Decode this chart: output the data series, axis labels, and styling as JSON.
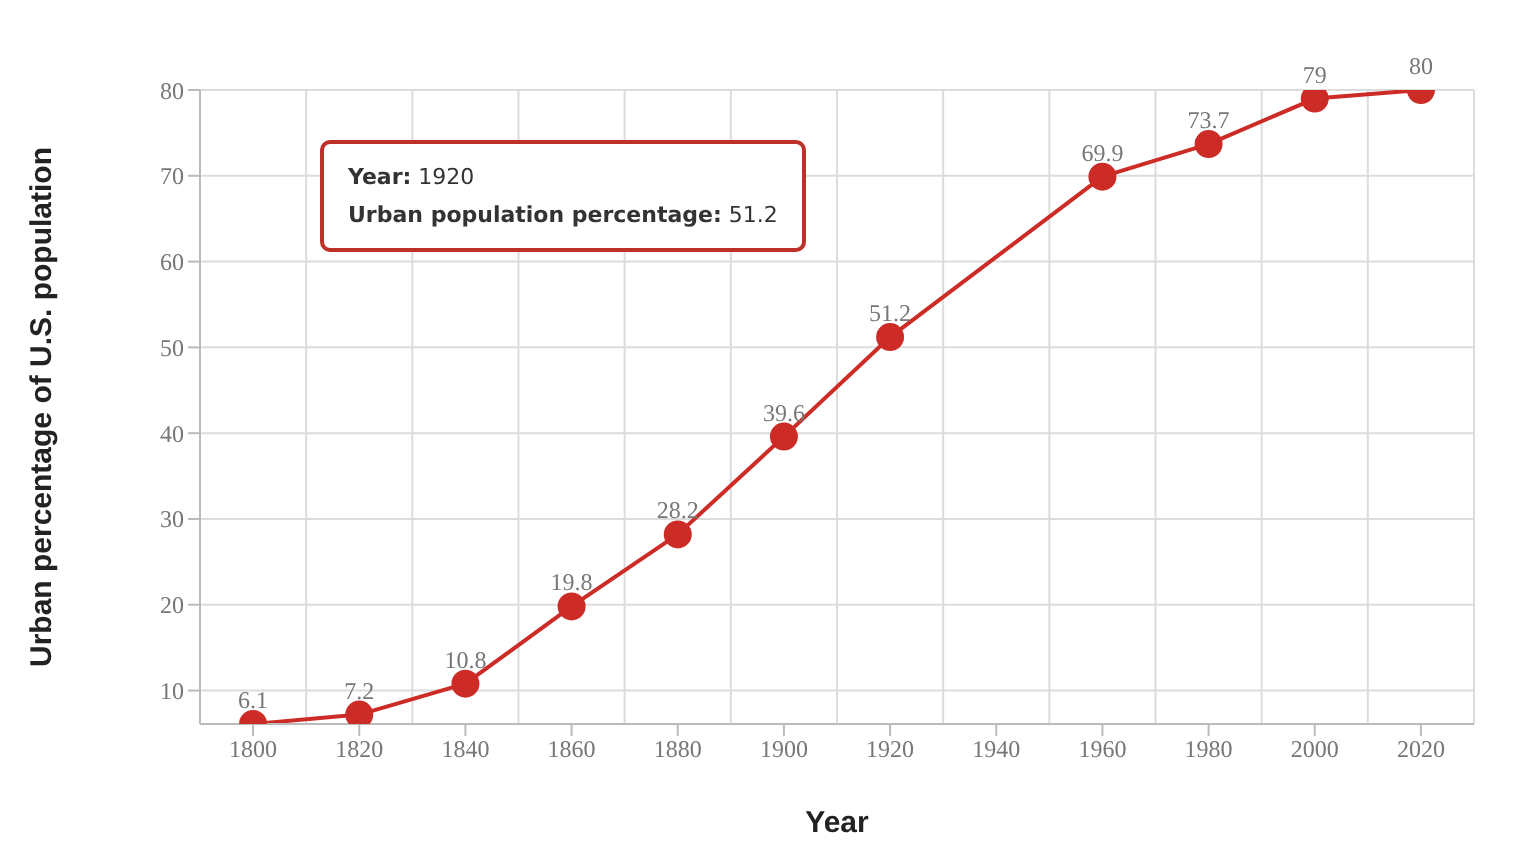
{
  "chart_data": {
    "type": "line",
    "xlabel": "Year",
    "ylabel": "Urban percentage of U.S. population",
    "categories": [
      "1800",
      "1820",
      "1840",
      "1860",
      "1880",
      "1900",
      "1920",
      "1940",
      "1960",
      "1980",
      "2000",
      "2020"
    ],
    "series": [
      {
        "color": "#cc2b26",
        "values": [
          6.1,
          7.2,
          10.8,
          19.8,
          28.2,
          39.6,
          51.2,
          null,
          69.9,
          73.7,
          79,
          80
        ]
      }
    ],
    "ylim": [
      6.1,
      80
    ],
    "yticks": [
      10,
      20,
      30,
      40,
      50,
      60,
      70,
      80
    ],
    "grid": true,
    "marker": "circle",
    "line_style": "solid",
    "data_labels": true,
    "annotations": [
      "Year: 1920\nUrban population percentage: 51.2"
    ]
  }
}
